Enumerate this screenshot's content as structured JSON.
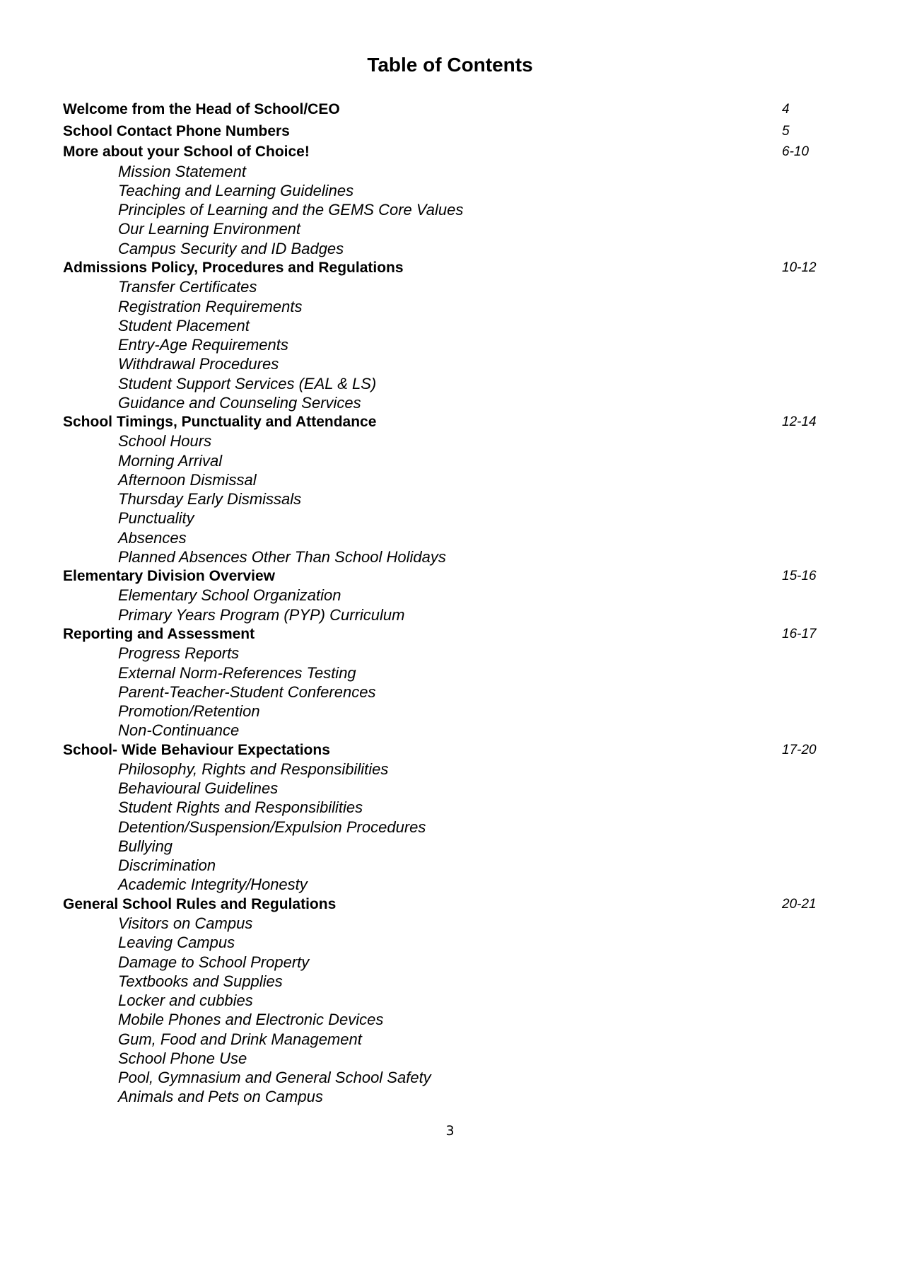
{
  "title": "Table of Contents",
  "entries": [
    {
      "label": "Welcome from the Head of School/CEO",
      "page": "4",
      "subs": []
    },
    {
      "label": "School Contact Phone Numbers",
      "page": "5",
      "subs": []
    },
    {
      "label": "More about your School of Choice!",
      "page": "6-10",
      "subs": [
        "Mission Statement",
        "Teaching and Learning Guidelines",
        "Principles of Learning and the GEMS Core Values",
        "Our Learning Environment",
        "Campus Security and ID Badges"
      ]
    },
    {
      "label": "Admissions Policy, Procedures and Regulations",
      "page": "10-12",
      "subs": [
        "Transfer Certificates",
        "Registration Requirements",
        "Student Placement",
        "Entry-Age Requirements",
        "Withdrawal Procedures",
        "Student Support Services (EAL & LS)",
        "Guidance and Counseling Services"
      ]
    },
    {
      "label": "School Timings, Punctuality and Attendance",
      "page": "12-14",
      "subs": [
        "School Hours",
        "Morning Arrival",
        "Afternoon Dismissal",
        "Thursday Early Dismissals",
        "Punctuality",
        "Absences",
        "Planned Absences Other Than School Holidays"
      ]
    },
    {
      "label": "Elementary Division Overview",
      "page": "15-16",
      "subs": [
        "Elementary School Organization",
        "Primary Years Program (PYP) Curriculum"
      ]
    },
    {
      "label": "Reporting and Assessment",
      "page": "16-17",
      "subs": [
        "Progress Reports",
        "External Norm-References Testing",
        "Parent-Teacher-Student Conferences",
        "Promotion/Retention",
        "Non-Continuance"
      ]
    },
    {
      "label": "School- Wide Behaviour Expectations",
      "page": "17-20",
      "subs": [
        "Philosophy, Rights and Responsibilities",
        "Behavioural Guidelines",
        "Student Rights and Responsibilities",
        "Detention/Suspension/Expulsion Procedures",
        "Bullying",
        "Discrimination",
        "Academic Integrity/Honesty"
      ]
    },
    {
      "label": "General School Rules and Regulations",
      "page": "20-21",
      "subs": [
        "Visitors on Campus",
        "Leaving Campus",
        "Damage to School Property",
        "Textbooks and Supplies",
        "Locker and cubbies",
        "Mobile Phones and Electronic Devices",
        "Gum, Food and Drink Management",
        "School Phone Use",
        "Pool, Gymnasium and General School Safety",
        "Animals and Pets on Campus"
      ]
    }
  ],
  "page_number": "3"
}
